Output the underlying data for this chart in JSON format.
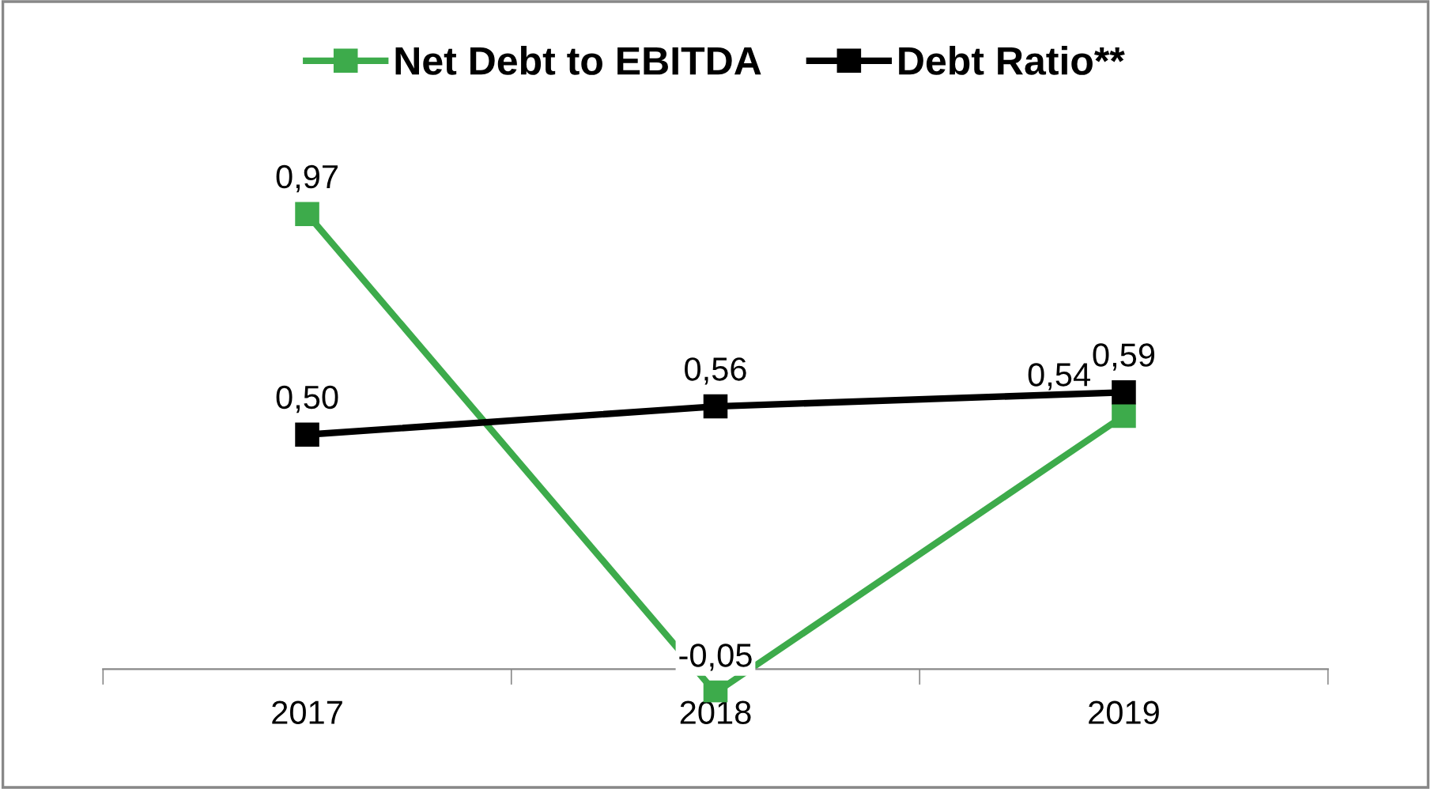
{
  "chart_data": {
    "type": "line",
    "categories": [
      "2017",
      "2018",
      "2019"
    ],
    "series": [
      {
        "name": "Net Debt to EBITDA",
        "color": "#3dab4b",
        "values": [
          0.97,
          -0.05,
          0.54
        ],
        "value_labels": [
          "0,97",
          "-0,05",
          "0,54"
        ]
      },
      {
        "name": "Debt Ratio**",
        "color": "#000000",
        "values": [
          0.5,
          0.56,
          0.59
        ],
        "value_labels": [
          "0,50",
          "0,56",
          "0,59"
        ]
      }
    ],
    "marker": "square",
    "line_style": "solid",
    "legend": "top",
    "grid": false
  }
}
